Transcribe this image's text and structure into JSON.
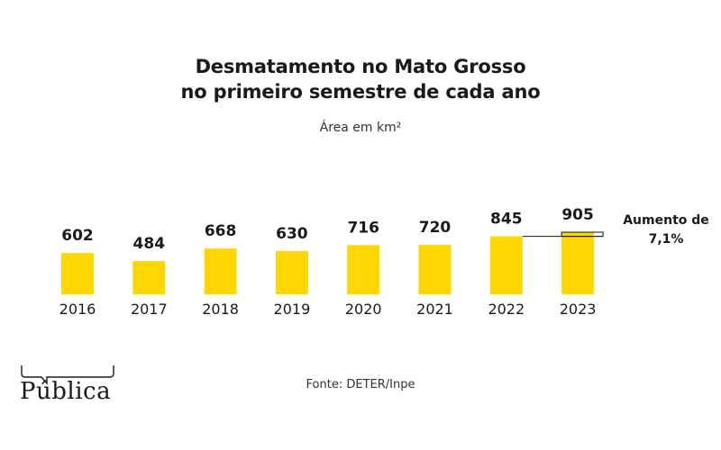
{
  "header": {
    "title_line_1": "Desmatamento no Mato Grosso",
    "title_line_2": "no primeiro semestre de cada ano",
    "subtitle": "Área em km²"
  },
  "chart_data": {
    "type": "bar",
    "title": "Desmatamento no Mato Grosso no primeiro semestre de cada ano",
    "subtitle": "Área em km²",
    "categories": [
      "2016",
      "2017",
      "2018",
      "2019",
      "2020",
      "2021",
      "2022",
      "2023"
    ],
    "values": [
      602,
      484,
      668,
      630,
      716,
      720,
      845,
      905
    ],
    "data_labels": [
      "602",
      "484",
      "668",
      "630",
      "716",
      "720",
      "845",
      "905"
    ],
    "ylim": [
      0,
      905
    ],
    "bar_color": "#ffd700",
    "grid": false,
    "annotation": {
      "text_line_1": "Aumento de",
      "text_line_2": "7,1%",
      "from_category": "2022",
      "to_category": "2023"
    }
  },
  "footer": {
    "source": "Fonte: DETER/Inpe",
    "logo_text": "Pública"
  }
}
